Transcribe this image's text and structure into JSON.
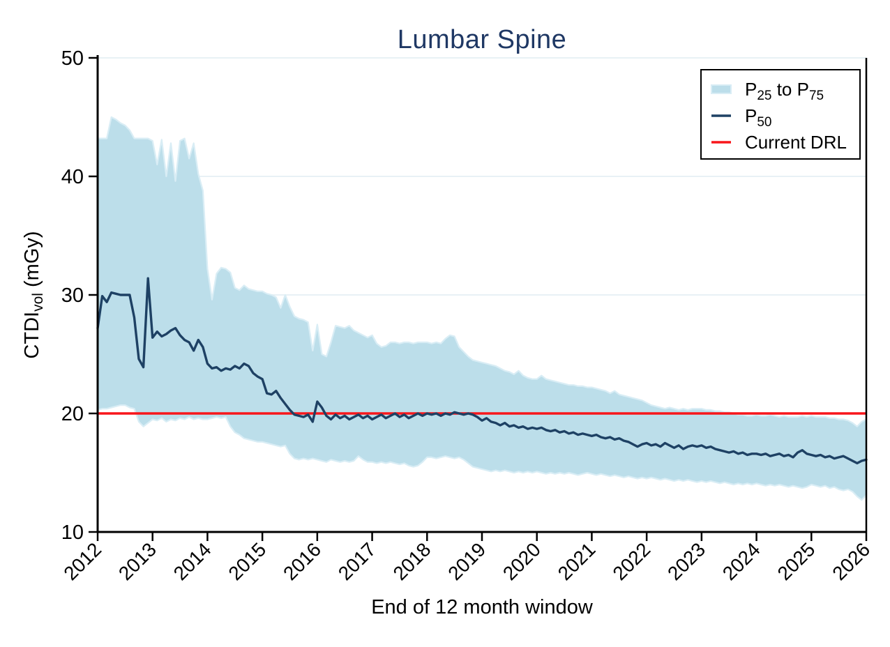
{
  "title": "Lumbar Spine",
  "colors": {
    "title": "#1f3864",
    "band_fill": "#bcdeea",
    "band_edge": "#d9edf5",
    "median_line": "#1e4164",
    "drl_line": "#f8161b",
    "grid_line": "#e8f1f5",
    "axis": "#000000",
    "tick_label": "#000000",
    "legend_border": "#000000",
    "legend_bg": "#ffffff"
  },
  "chart_data": {
    "type": "line",
    "title": "Lumbar Spine",
    "xlabel": "End of 12 month window",
    "ylabel_plain": "CTDI vol (mGy)",
    "ylabel_parts": [
      {
        "t": "CTDI"
      },
      {
        "t": "vol",
        "sub": true
      },
      {
        "t": " (mGy)"
      }
    ],
    "xlim": [
      2012,
      2026
    ],
    "ylim": [
      10,
      50
    ],
    "xticks": [
      2012,
      2013,
      2014,
      2015,
      2016,
      2017,
      2018,
      2019,
      2020,
      2021,
      2022,
      2023,
      2024,
      2025,
      2026
    ],
    "yticks": [
      10,
      20,
      30,
      40,
      50
    ],
    "grid": "horizontal gridlines at y ticks",
    "legend_position": "top-right",
    "x_start_year": 2012,
    "x_step_years": 0.083333,
    "drl_value": 20,
    "series": [
      {
        "name": "P25",
        "role": "band-lower",
        "values": [
          20.3,
          20.4,
          20.4,
          20.5,
          20.6,
          20.7,
          20.7,
          20.5,
          20.4,
          19.3,
          18.9,
          19.2,
          19.5,
          19.4,
          19.6,
          19.3,
          19.5,
          19.4,
          19.6,
          19.5,
          19.7,
          19.5,
          19.6,
          19.5,
          19.5,
          19.6,
          19.7,
          19.6,
          19.7,
          18.9,
          18.4,
          18.2,
          17.9,
          17.8,
          17.7,
          17.6,
          17.6,
          17.5,
          17.4,
          17.3,
          17.2,
          17.3,
          16.6,
          16.2,
          16.1,
          16.2,
          16.1,
          16.2,
          16.1,
          16.0,
          15.9,
          16.1,
          16.0,
          15.9,
          16.0,
          15.9,
          16.0,
          16.4,
          16.1,
          15.9,
          15.9,
          15.8,
          15.9,
          15.8,
          15.9,
          15.8,
          15.7,
          15.8,
          15.6,
          15.5,
          15.6,
          15.9,
          16.3,
          16.3,
          16.2,
          16.3,
          16.4,
          16.3,
          16.2,
          16.3,
          16.1,
          15.8,
          15.5,
          15.4,
          15.3,
          15.2,
          15.1,
          15.2,
          15.1,
          15.2,
          15.1,
          15.0,
          15.1,
          15.0,
          15.1,
          15.0,
          15.1,
          15.0,
          14.9,
          15.0,
          14.9,
          15.0,
          14.9,
          15.0,
          14.9,
          14.8,
          14.9,
          15.0,
          14.9,
          14.8,
          14.9,
          14.8,
          14.7,
          14.8,
          14.7,
          14.6,
          14.7,
          14.6,
          14.5,
          14.6,
          14.5,
          14.6,
          14.5,
          14.4,
          14.5,
          14.4,
          14.3,
          14.4,
          14.3,
          14.4,
          14.3,
          14.2,
          14.3,
          14.2,
          14.3,
          14.2,
          14.1,
          14.2,
          14.1,
          14.0,
          14.1,
          14.0,
          14.1,
          14.0,
          14.1,
          14.0,
          13.9,
          14.0,
          13.9,
          14.0,
          13.9,
          13.8,
          13.9,
          13.8,
          13.7,
          13.8,
          14.0,
          13.9,
          13.8,
          13.9,
          13.7,
          13.8,
          13.6,
          13.5,
          13.6,
          13.4,
          13.0,
          12.7,
          13.1
        ]
      },
      {
        "name": "P50",
        "role": "median",
        "values": [
          27.2,
          29.9,
          29.4,
          30.2,
          30.1,
          30.0,
          30.0,
          30.0,
          28.1,
          24.6,
          23.9,
          31.4,
          26.4,
          26.9,
          26.5,
          26.7,
          27.0,
          27.2,
          26.6,
          26.2,
          26.0,
          25.3,
          26.2,
          25.6,
          24.2,
          23.8,
          23.9,
          23.6,
          23.8,
          23.7,
          24.0,
          23.8,
          24.2,
          24.0,
          23.4,
          23.1,
          22.9,
          21.7,
          21.6,
          21.9,
          21.3,
          20.8,
          20.3,
          19.9,
          19.8,
          19.7,
          19.9,
          19.3,
          21.0,
          20.5,
          19.8,
          19.5,
          19.9,
          19.6,
          19.8,
          19.5,
          19.7,
          19.9,
          19.6,
          19.8,
          19.5,
          19.7,
          19.9,
          19.6,
          19.8,
          20.0,
          19.7,
          19.9,
          19.6,
          19.8,
          20.0,
          19.8,
          20.0,
          19.9,
          20.0,
          19.8,
          20.0,
          19.9,
          20.1,
          20.0,
          19.9,
          20.0,
          19.9,
          19.7,
          19.4,
          19.6,
          19.3,
          19.2,
          19.0,
          19.2,
          18.9,
          19.0,
          18.8,
          18.9,
          18.7,
          18.8,
          18.7,
          18.8,
          18.6,
          18.5,
          18.6,
          18.4,
          18.5,
          18.3,
          18.4,
          18.2,
          18.3,
          18.2,
          18.1,
          18.2,
          18.0,
          17.9,
          18.0,
          17.8,
          17.9,
          17.7,
          17.6,
          17.4,
          17.2,
          17.4,
          17.5,
          17.3,
          17.4,
          17.2,
          17.5,
          17.3,
          17.1,
          17.3,
          17.0,
          17.2,
          17.3,
          17.2,
          17.3,
          17.1,
          17.2,
          17.0,
          16.9,
          16.8,
          16.7,
          16.8,
          16.6,
          16.7,
          16.5,
          16.6,
          16.6,
          16.5,
          16.6,
          16.4,
          16.5,
          16.6,
          16.4,
          16.5,
          16.3,
          16.7,
          16.9,
          16.6,
          16.5,
          16.4,
          16.5,
          16.3,
          16.4,
          16.2,
          16.3,
          16.4,
          16.2,
          16.0,
          15.8,
          16.0,
          16.1
        ]
      },
      {
        "name": "P75",
        "role": "band-upper",
        "values": [
          43.2,
          43.2,
          43.2,
          45.0,
          44.8,
          44.5,
          44.3,
          43.9,
          43.2,
          43.2,
          43.2,
          43.2,
          43.0,
          41.0,
          43.1,
          40.0,
          42.8,
          39.6,
          43.0,
          43.2,
          41.5,
          42.8,
          40.2,
          38.8,
          32.2,
          29.6,
          31.8,
          32.3,
          32.2,
          31.9,
          30.6,
          30.4,
          30.8,
          30.5,
          30.4,
          30.3,
          30.3,
          30.1,
          30.0,
          29.8,
          28.9,
          30.0,
          29.0,
          28.2,
          28.0,
          27.9,
          27.7,
          25.3,
          27.5,
          25.0,
          24.8,
          26.0,
          27.4,
          27.3,
          27.2,
          27.4,
          27.0,
          26.8,
          26.6,
          26.4,
          26.6,
          25.9,
          25.6,
          25.7,
          26.0,
          26.0,
          25.9,
          26.0,
          26.0,
          25.9,
          26.0,
          26.0,
          26.0,
          25.9,
          26.0,
          25.9,
          26.3,
          26.6,
          26.5,
          25.6,
          25.2,
          24.8,
          24.5,
          24.4,
          24.3,
          24.2,
          24.1,
          24.0,
          23.8,
          23.6,
          23.5,
          23.3,
          23.6,
          23.2,
          23.0,
          22.9,
          22.9,
          23.2,
          22.9,
          22.8,
          22.7,
          22.6,
          22.5,
          22.4,
          22.4,
          22.3,
          22.3,
          22.2,
          22.2,
          22.1,
          22.0,
          21.9,
          21.7,
          21.9,
          21.6,
          21.5,
          21.4,
          21.3,
          21.2,
          21.1,
          20.9,
          20.7,
          20.6,
          20.5,
          20.4,
          20.5,
          20.4,
          20.3,
          20.4,
          20.3,
          20.4,
          20.4,
          20.4,
          20.3,
          20.3,
          20.2,
          20.2,
          20.1,
          20.1,
          20.0,
          19.9,
          19.9,
          19.8,
          19.8,
          19.9,
          19.8,
          19.8,
          19.9,
          19.8,
          19.7,
          19.8,
          19.7,
          19.7,
          19.7,
          19.8,
          19.7,
          19.8,
          19.7,
          19.7,
          19.7,
          19.6,
          19.6,
          19.5,
          19.5,
          19.4,
          19.2,
          18.9,
          19.3,
          19.5
        ]
      }
    ],
    "legend": {
      "items": [
        {
          "swatch": "band",
          "label_plain": "P25 to P75",
          "label_parts": [
            {
              "t": "P"
            },
            {
              "t": "25",
              "sub": true
            },
            {
              "t": " to P"
            },
            {
              "t": "75",
              "sub": true
            }
          ]
        },
        {
          "swatch": "line-median",
          "label_plain": "P50",
          "label_parts": [
            {
              "t": "P"
            },
            {
              "t": "50",
              "sub": true
            }
          ]
        },
        {
          "swatch": "line-drl",
          "label_plain": "Current DRL",
          "label_parts": [
            {
              "t": "Current DRL"
            }
          ]
        }
      ]
    }
  }
}
